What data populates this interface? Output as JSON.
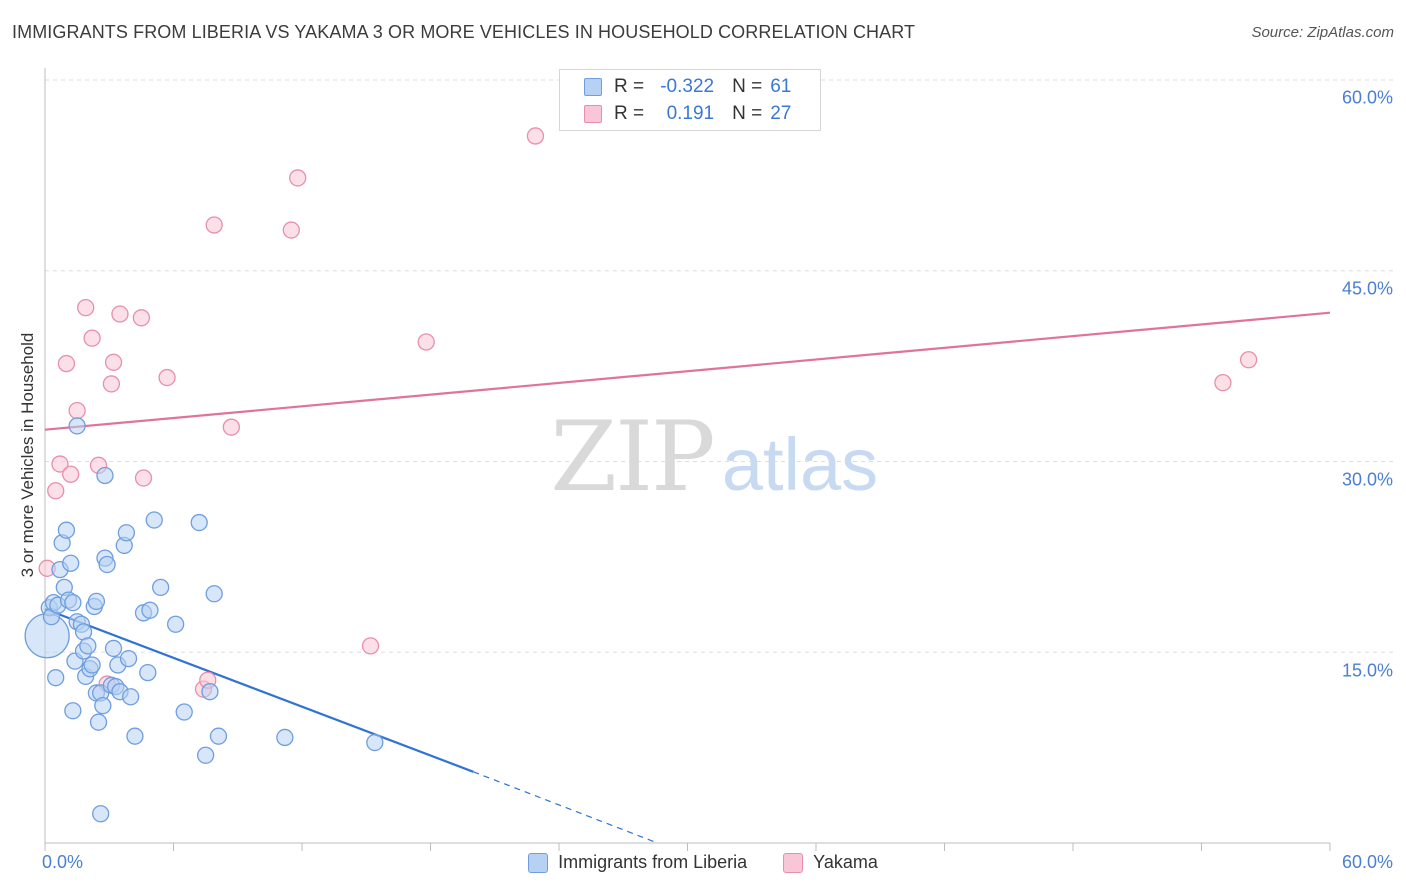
{
  "header": {
    "title": "IMMIGRANTS FROM LIBERIA VS YAKAMA 3 OR MORE VEHICLES IN HOUSEHOLD CORRELATION CHART",
    "source": "Source: ZipAtlas.com"
  },
  "watermark": {
    "zip": "ZIP",
    "atlas": "atlas"
  },
  "legend": {
    "rows": [
      {
        "r_label": "R =",
        "r_value": "-0.322",
        "n_label": "N =",
        "n_value": "61"
      },
      {
        "r_label": "R =",
        "r_value": "0.191",
        "n_label": "N =",
        "n_value": "27"
      }
    ]
  },
  "bottom_legend": {
    "series1": "Immigrants from Liberia",
    "series2": "Yakama"
  },
  "colors": {
    "blue_fill": "#b7d1f3",
    "blue_stroke": "#6f9ee0",
    "blue_line": "#2f73d4",
    "pink_fill": "#f8c6d6",
    "pink_stroke": "#e88fab",
    "pink_line": "#e0739a",
    "axis_text": "#4a7fd4",
    "grid": "#dddddd"
  },
  "chart_data": {
    "type": "scatter",
    "title": "IMMIGRANTS FROM LIBERIA VS YAKAMA 3 OR MORE VEHICLES IN HOUSEHOLD CORRELATION CHART",
    "xlabel": "",
    "ylabel": "3 or more Vehicles in Household",
    "xlim": [
      0,
      60
    ],
    "ylim": [
      0,
      60
    ],
    "x_tick_labels": [
      "0.0%",
      "60.0%"
    ],
    "y_ticks": [
      15,
      30,
      45,
      60
    ],
    "y_tick_labels": [
      "15.0%",
      "30.0%",
      "45.0%",
      "60.0%"
    ],
    "grid": true,
    "series": [
      {
        "name": "Immigrants from Liberia",
        "R": -0.322,
        "N": 61,
        "trend": {
          "x0": 0,
          "y0": 18.4,
          "x1": 20,
          "y1": 5.6,
          "dash_x1": 28.6,
          "dash_y1": 0
        },
        "points": [
          [
            0.1,
            16.3,
            22
          ],
          [
            0.2,
            18.5,
            8
          ],
          [
            0.3,
            17.8,
            8
          ],
          [
            0.4,
            18.9,
            8
          ],
          [
            0.5,
            13.0,
            8
          ],
          [
            0.6,
            18.7,
            8
          ],
          [
            0.7,
            21.5,
            8
          ],
          [
            0.8,
            23.6,
            8
          ],
          [
            0.9,
            20.1,
            8
          ],
          [
            1.0,
            24.6,
            8
          ],
          [
            1.1,
            19.1,
            8
          ],
          [
            1.2,
            22.0,
            8
          ],
          [
            1.3,
            18.9,
            8
          ],
          [
            1.3,
            10.4,
            8
          ],
          [
            1.4,
            14.3,
            8
          ],
          [
            1.5,
            17.4,
            8
          ],
          [
            1.5,
            32.8,
            8
          ],
          [
            1.7,
            17.2,
            8
          ],
          [
            1.8,
            16.6,
            8
          ],
          [
            1.8,
            15.1,
            8
          ],
          [
            1.9,
            13.1,
            8
          ],
          [
            2.0,
            15.5,
            8
          ],
          [
            2.1,
            13.7,
            8
          ],
          [
            2.2,
            14.0,
            8
          ],
          [
            2.3,
            18.6,
            8
          ],
          [
            2.4,
            11.8,
            8
          ],
          [
            2.4,
            19.0,
            8
          ],
          [
            2.5,
            9.5,
            8
          ],
          [
            2.6,
            2.3,
            8
          ],
          [
            2.6,
            11.8,
            8
          ],
          [
            2.7,
            10.8,
            8
          ],
          [
            2.8,
            22.4,
            8
          ],
          [
            2.8,
            28.9,
            8
          ],
          [
            2.9,
            21.9,
            8
          ],
          [
            3.1,
            12.4,
            8
          ],
          [
            3.2,
            15.3,
            8
          ],
          [
            3.3,
            12.3,
            8
          ],
          [
            3.4,
            14.0,
            8
          ],
          [
            3.5,
            11.9,
            8
          ],
          [
            3.7,
            23.4,
            8
          ],
          [
            3.8,
            24.4,
            8
          ],
          [
            3.9,
            14.5,
            8
          ],
          [
            4.0,
            11.5,
            8
          ],
          [
            4.2,
            8.4,
            8
          ],
          [
            4.6,
            18.1,
            8
          ],
          [
            4.8,
            13.4,
            8
          ],
          [
            4.9,
            18.3,
            8
          ],
          [
            5.1,
            25.4,
            8
          ],
          [
            5.4,
            20.1,
            8
          ],
          [
            6.1,
            17.2,
            8
          ],
          [
            6.5,
            10.3,
            8
          ],
          [
            7.2,
            25.2,
            8
          ],
          [
            7.5,
            6.9,
            8
          ],
          [
            7.7,
            11.9,
            8
          ],
          [
            7.9,
            19.6,
            8
          ],
          [
            8.1,
            8.4,
            8
          ],
          [
            11.2,
            8.3,
            8
          ],
          [
            15.4,
            7.9,
            8
          ],
          [
            0.8,
            14.7,
            0
          ],
          [
            2.0,
            17.0,
            0
          ],
          [
            3.0,
            16.0,
            0
          ]
        ]
      },
      {
        "name": "Yakama",
        "R": 0.191,
        "N": 27,
        "trend": {
          "x0": 0,
          "y0": 32.5,
          "x1": 60,
          "y1": 41.7
        },
        "points": [
          [
            0.1,
            21.6,
            8
          ],
          [
            0.5,
            27.7,
            8
          ],
          [
            0.7,
            29.8,
            8
          ],
          [
            1.0,
            37.7,
            8
          ],
          [
            1.2,
            29.0,
            8
          ],
          [
            1.5,
            34.0,
            8
          ],
          [
            1.9,
            42.1,
            8
          ],
          [
            2.2,
            39.7,
            8
          ],
          [
            2.5,
            29.7,
            8
          ],
          [
            2.9,
            12.5,
            8
          ],
          [
            3.1,
            36.1,
            8
          ],
          [
            3.2,
            37.8,
            8
          ],
          [
            3.5,
            41.6,
            8
          ],
          [
            4.5,
            41.3,
            8
          ],
          [
            4.6,
            28.7,
            8
          ],
          [
            5.7,
            36.6,
            8
          ],
          [
            7.4,
            12.1,
            8
          ],
          [
            7.6,
            12.8,
            8
          ],
          [
            7.9,
            48.6,
            8
          ],
          [
            8.7,
            32.7,
            8
          ],
          [
            11.5,
            48.2,
            8
          ],
          [
            11.8,
            52.3,
            8
          ],
          [
            15.2,
            15.5,
            8
          ],
          [
            17.8,
            39.4,
            8
          ],
          [
            22.9,
            55.6,
            8
          ],
          [
            55.0,
            36.2,
            8
          ],
          [
            56.2,
            38.0,
            8
          ]
        ]
      }
    ]
  }
}
